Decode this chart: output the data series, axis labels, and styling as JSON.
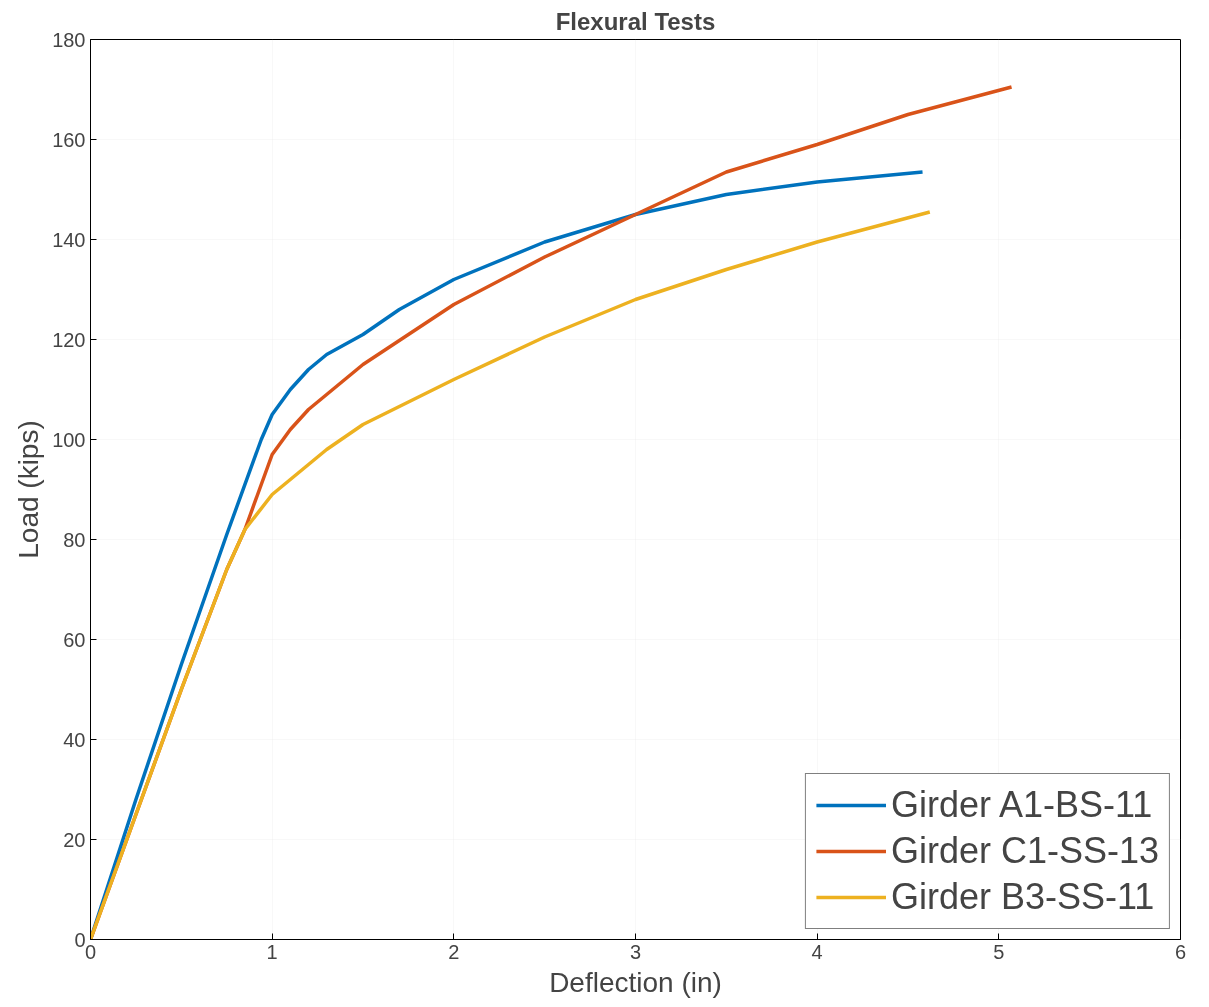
{
  "chart_data": {
    "type": "line",
    "title": "Flexural Tests",
    "xlabel": "Deflection (in)",
    "ylabel": "Load (kips)",
    "xlim": [
      0,
      6
    ],
    "ylim": [
      0,
      180
    ],
    "xticks": [
      0,
      1,
      2,
      3,
      4,
      5,
      6
    ],
    "yticks": [
      0,
      20,
      40,
      60,
      80,
      100,
      120,
      140,
      160,
      180
    ],
    "grid": true,
    "legend": "bottom right",
    "line_style": "solid",
    "marker": "none",
    "series": [
      {
        "name": "Girder A1-BS-11",
        "color": "#0072bd",
        "x": [
          0,
          0.25,
          0.5,
          0.75,
          0.94,
          1.0,
          1.1,
          1.2,
          1.3,
          1.5,
          1.7,
          2.0,
          2.5,
          3.0,
          3.5,
          4.0,
          4.58
        ],
        "values": [
          0,
          28,
          55,
          81,
          100,
          105,
          110,
          114,
          117,
          121,
          126,
          132,
          139.5,
          145,
          149,
          151.5,
          153.5
        ]
      },
      {
        "name": "Girder C1-SS-13",
        "color": "#d95319",
        "x": [
          0,
          0.25,
          0.5,
          0.75,
          0.85,
          1.0,
          1.1,
          1.2,
          1.3,
          1.5,
          2.0,
          2.5,
          3.0,
          3.5,
          4.0,
          4.5,
          5.07
        ],
        "values": [
          0,
          25,
          50,
          74,
          82,
          97,
          102,
          106,
          109,
          115,
          127,
          136.5,
          145,
          153.5,
          159,
          165,
          170.5
        ]
      },
      {
        "name": "Girder B3-SS-11",
        "color": "#edb120",
        "x": [
          0,
          0.25,
          0.5,
          0.75,
          0.85,
          1.0,
          1.1,
          1.2,
          1.3,
          1.5,
          2.0,
          2.5,
          3.0,
          3.5,
          4.0,
          4.62
        ],
        "values": [
          0,
          25,
          50,
          74,
          82,
          89,
          92,
          95,
          98,
          103,
          112,
          120.5,
          128,
          134,
          139.5,
          145.5
        ]
      }
    ]
  }
}
